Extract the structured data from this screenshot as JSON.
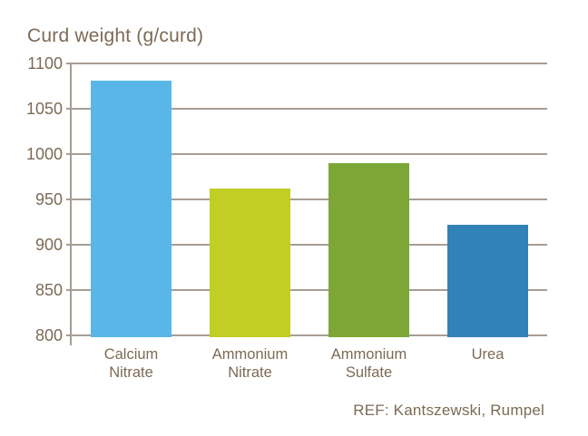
{
  "chart_data": {
    "type": "bar",
    "title": "Curd weight (g/curd)",
    "categories": [
      "Calcium Nitrate",
      "Ammonium Nitrate",
      "Ammonium Sulfate",
      "Urea"
    ],
    "values": [
      1081,
      962,
      990,
      922
    ],
    "bar_colors": [
      "#59B7E8",
      "#C2CE24",
      "#7CA737",
      "#3182B7"
    ],
    "yticks": [
      1100,
      1050,
      1000,
      950,
      900,
      850,
      800
    ],
    "ylim": [
      800,
      1100
    ],
    "xlabel": "",
    "ylabel": "Curd weight (g/curd)",
    "grid": true,
    "legend": false,
    "annotation": "REF: Kantszewski, Rumpel",
    "text_color": "#7C6A55",
    "axis_color": "#A79D93"
  }
}
